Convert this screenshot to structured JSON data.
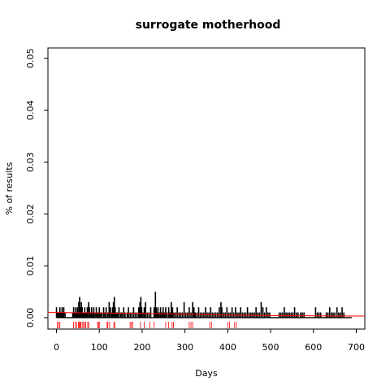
{
  "chart_data": {
    "type": "bar",
    "title": "surrogate motherhood",
    "xlabel": "Days",
    "ylabel": "% of results",
    "xlim": [
      -20,
      720
    ],
    "ylim": [
      -0.0022,
      0.052
    ],
    "x_ticks": [
      "0",
      "100",
      "200",
      "300",
      "400",
      "500",
      "600",
      "700"
    ],
    "y_ticks": [
      "0.00",
      "0.01",
      "0.02",
      "0.03",
      "0.04",
      "0.05"
    ],
    "grid": false,
    "legend": "none",
    "series": [
      {
        "values": [
          [
            0,
            0.002
          ],
          [
            2,
            0.001
          ],
          [
            5,
            0.001
          ],
          [
            8,
            0.002
          ],
          [
            10,
            0.001
          ],
          [
            13,
            0.002
          ],
          [
            15,
            0.001
          ],
          [
            17,
            0.002
          ],
          [
            20,
            0.001
          ],
          [
            38,
            0.001
          ],
          [
            40,
            0.002
          ],
          [
            42,
            0.001
          ],
          [
            45,
            0.002
          ],
          [
            47,
            0.001
          ],
          [
            49,
            0.002
          ],
          [
            51,
            0.001
          ],
          [
            52,
            0.003
          ],
          [
            54,
            0.004
          ],
          [
            56,
            0.002
          ],
          [
            58,
            0.003
          ],
          [
            60,
            0.002
          ],
          [
            62,
            0.001
          ],
          [
            64,
            0.001
          ],
          [
            66,
            0.002
          ],
          [
            68,
            0.001
          ],
          [
            70,
            0.001
          ],
          [
            72,
            0.002
          ],
          [
            75,
            0.003
          ],
          [
            77,
            0.002
          ],
          [
            80,
            0.001
          ],
          [
            82,
            0.002
          ],
          [
            85,
            0.001
          ],
          [
            87,
            0.002
          ],
          [
            90,
            0.001
          ],
          [
            93,
            0.002
          ],
          [
            95,
            0.001
          ],
          [
            98,
            0.001
          ],
          [
            100,
            0.002
          ],
          [
            103,
            0.001
          ],
          [
            106,
            0.001
          ],
          [
            110,
            0.002
          ],
          [
            113,
            0.001
          ],
          [
            116,
            0.002
          ],
          [
            120,
            0.001
          ],
          [
            123,
            0.003
          ],
          [
            126,
            0.002
          ],
          [
            129,
            0.001
          ],
          [
            131,
            0.002
          ],
          [
            133,
            0.003
          ],
          [
            135,
            0.004
          ],
          [
            137,
            0.002
          ],
          [
            140,
            0.001
          ],
          [
            143,
            0.001
          ],
          [
            146,
            0.002
          ],
          [
            150,
            0.001
          ],
          [
            153,
            0.001
          ],
          [
            157,
            0.002
          ],
          [
            160,
            0.001
          ],
          [
            165,
            0.001
          ],
          [
            168,
            0.002
          ],
          [
            172,
            0.001
          ],
          [
            176,
            0.001
          ],
          [
            180,
            0.002
          ],
          [
            184,
            0.001
          ],
          [
            188,
            0.001
          ],
          [
            192,
            0.002
          ],
          [
            195,
            0.003
          ],
          [
            197,
            0.004
          ],
          [
            199,
            0.002
          ],
          [
            202,
            0.001
          ],
          [
            205,
            0.002
          ],
          [
            208,
            0.003
          ],
          [
            212,
            0.001
          ],
          [
            216,
            0.001
          ],
          [
            220,
            0.002
          ],
          [
            228,
            0.002
          ],
          [
            231,
            0.005
          ],
          [
            233,
            0.002
          ],
          [
            235,
            0.001
          ],
          [
            237,
            0.002
          ],
          [
            240,
            0.001
          ],
          [
            243,
            0.002
          ],
          [
            246,
            0.001
          ],
          [
            249,
            0.002
          ],
          [
            252,
            0.001
          ],
          [
            255,
            0.002
          ],
          [
            258,
            0.001
          ],
          [
            262,
            0.002
          ],
          [
            265,
            0.001
          ],
          [
            268,
            0.003
          ],
          [
            271,
            0.002
          ],
          [
            274,
            0.001
          ],
          [
            278,
            0.001
          ],
          [
            282,
            0.002
          ],
          [
            286,
            0.001
          ],
          [
            290,
            0.001
          ],
          [
            294,
            0.001
          ],
          [
            298,
            0.003
          ],
          [
            302,
            0.001
          ],
          [
            306,
            0.001
          ],
          [
            310,
            0.002
          ],
          [
            314,
            0.001
          ],
          [
            318,
            0.003
          ],
          [
            321,
            0.002
          ],
          [
            324,
            0.001
          ],
          [
            328,
            0.001
          ],
          [
            332,
            0.002
          ],
          [
            336,
            0.001
          ],
          [
            340,
            0.001
          ],
          [
            344,
            0.001
          ],
          [
            348,
            0.002
          ],
          [
            352,
            0.001
          ],
          [
            356,
            0.001
          ],
          [
            360,
            0.002
          ],
          [
            364,
            0.001
          ],
          [
            368,
            0.001
          ],
          [
            372,
            0.001
          ],
          [
            376,
            0.001
          ],
          [
            380,
            0.002
          ],
          [
            384,
            0.003
          ],
          [
            386,
            0.002
          ],
          [
            390,
            0.001
          ],
          [
            394,
            0.001
          ],
          [
            398,
            0.002
          ],
          [
            402,
            0.001
          ],
          [
            406,
            0.001
          ],
          [
            410,
            0.002
          ],
          [
            414,
            0.001
          ],
          [
            418,
            0.002
          ],
          [
            422,
            0.001
          ],
          [
            426,
            0.001
          ],
          [
            430,
            0.002
          ],
          [
            434,
            0.001
          ],
          [
            438,
            0.001
          ],
          [
            442,
            0.001
          ],
          [
            446,
            0.002
          ],
          [
            450,
            0.001
          ],
          [
            454,
            0.001
          ],
          [
            458,
            0.001
          ],
          [
            462,
            0.001
          ],
          [
            466,
            0.002
          ],
          [
            470,
            0.001
          ],
          [
            474,
            0.001
          ],
          [
            478,
            0.003
          ],
          [
            482,
            0.002
          ],
          [
            486,
            0.001
          ],
          [
            490,
            0.002
          ],
          [
            494,
            0.001
          ],
          [
            498,
            0.001
          ],
          [
            520,
            0.001
          ],
          [
            524,
            0.001
          ],
          [
            528,
            0.001
          ],
          [
            532,
            0.002
          ],
          [
            536,
            0.001
          ],
          [
            540,
            0.001
          ],
          [
            544,
            0.001
          ],
          [
            548,
            0.001
          ],
          [
            552,
            0.001
          ],
          [
            556,
            0.002
          ],
          [
            560,
            0.001
          ],
          [
            564,
            0.001
          ],
          [
            570,
            0.001
          ],
          [
            574,
            0.001
          ],
          [
            578,
            0.001
          ],
          [
            605,
            0.002
          ],
          [
            609,
            0.001
          ],
          [
            613,
            0.001
          ],
          [
            617,
            0.001
          ],
          [
            630,
            0.001
          ],
          [
            634,
            0.001
          ],
          [
            638,
            0.002
          ],
          [
            642,
            0.001
          ],
          [
            646,
            0.001
          ],
          [
            650,
            0.001
          ],
          [
            655,
            0.002
          ],
          [
            659,
            0.001
          ],
          [
            663,
            0.001
          ],
          [
            667,
            0.002
          ],
          [
            671,
            0.001
          ]
        ]
      },
      {
        "type": "line",
        "color": "#ff0000",
        "values": [
          [
            -20,
            0.001
          ],
          [
            0,
            0.001
          ],
          [
            100,
            0.0009
          ],
          [
            200,
            0.0008
          ],
          [
            300,
            0.0007
          ],
          [
            400,
            0.0005
          ],
          [
            500,
            0.0004
          ],
          [
            600,
            0.00035
          ],
          [
            720,
            0.0003
          ]
        ]
      },
      {
        "type": "rug",
        "color": "#ff0000",
        "values": [
          2,
          5,
          8,
          40,
          44,
          47,
          51,
          53,
          55,
          57,
          60,
          63,
          66,
          68,
          73,
          75,
          96,
          98,
          100,
          118,
          120,
          124,
          134,
          136,
          172,
          175,
          178,
          196,
          205,
          218,
          228,
          255,
          262,
          270,
          273,
          310,
          314,
          318,
          358,
          362,
          400,
          404,
          416,
          420
        ]
      }
    ]
  },
  "colors": {
    "series": "#000000",
    "fit_line": "#ff0000",
    "rug": "#ff0000"
  }
}
